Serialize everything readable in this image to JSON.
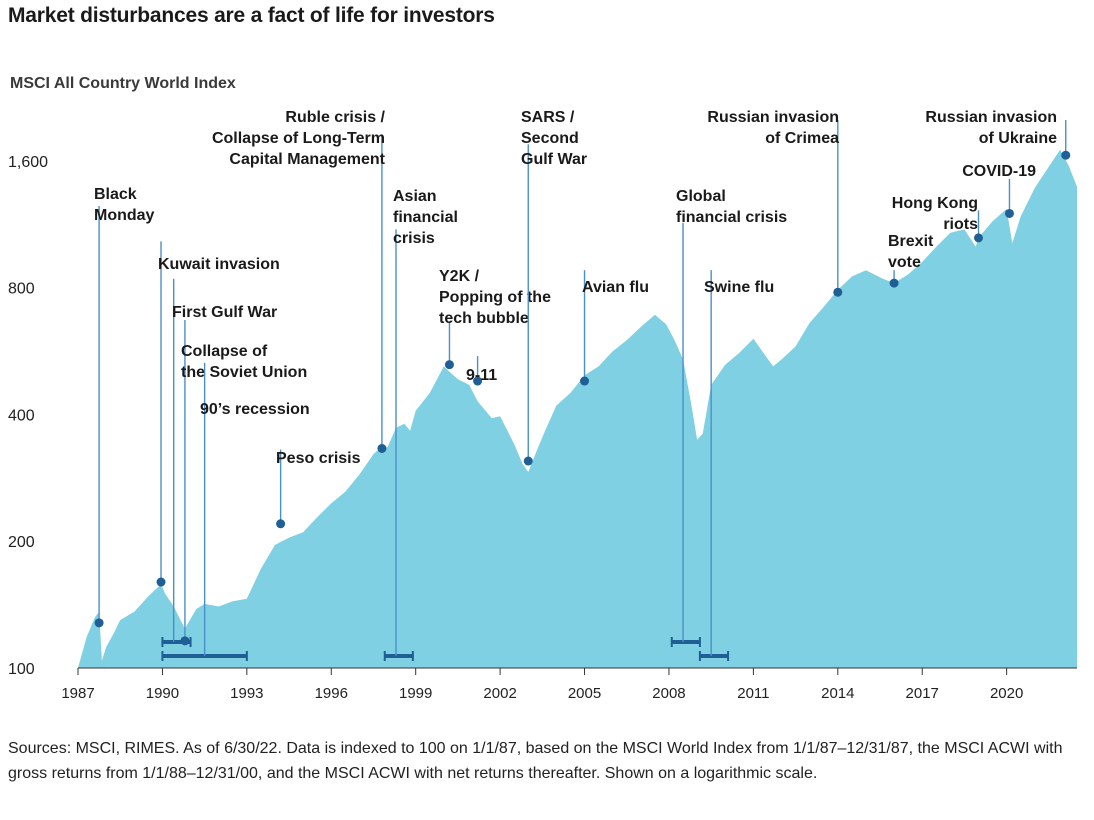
{
  "title": "Market disturbances are a fact of life for investors",
  "subtitle": "MSCI All Country World Index",
  "source": "Sources: MSCI, RIMES. As of 6/30/22. Data is indexed to 100 on 1/1/87, based on the MSCI World Index from 1/1/87–12/31/87, the MSCI ACWI with gross returns from 1/1/88–12/31/00, and the MSCI ACWI with net returns thereafter. Shown on a logarithmic scale.",
  "colors": {
    "area": "#7fd0e2",
    "marker": "#1f5f96",
    "leader": "#4a90c8",
    "text": "#1a1a1a"
  },
  "chart_data": {
    "type": "area",
    "title": "MSCI All Country World Index",
    "y_scale": "log",
    "ylim": [
      100,
      2000
    ],
    "xlim": [
      1987,
      2022.5
    ],
    "y_ticks": [
      {
        "value": 100,
        "label": "100"
      },
      {
        "value": 200,
        "label": "200"
      },
      {
        "value": 400,
        "label": "400"
      },
      {
        "value": 800,
        "label": "800"
      },
      {
        "value": 1600,
        "label": "1,600"
      }
    ],
    "x_ticks": [
      {
        "value": 1987,
        "label": "1987"
      },
      {
        "value": 1990,
        "label": "1990"
      },
      {
        "value": 1993,
        "label": "1993"
      },
      {
        "value": 1996,
        "label": "1996"
      },
      {
        "value": 1999,
        "label": "1999"
      },
      {
        "value": 2002,
        "label": "2002"
      },
      {
        "value": 2005,
        "label": "2005"
      },
      {
        "value": 2008,
        "label": "2008"
      },
      {
        "value": 2011,
        "label": "2011"
      },
      {
        "value": 2014,
        "label": "2014"
      },
      {
        "value": 2017,
        "label": "2017"
      },
      {
        "value": 2020,
        "label": "2020"
      }
    ],
    "series": [
      {
        "name": "MSCI ACWI index level",
        "x": [
          1987.0,
          1987.3,
          1987.6,
          1987.75,
          1987.85,
          1988.0,
          1988.3,
          1988.5,
          1989.0,
          1989.5,
          1989.95,
          1990.1,
          1990.4,
          1990.8,
          1991.2,
          1991.5,
          1992.0,
          1992.5,
          1993.0,
          1993.5,
          1994.0,
          1994.5,
          1995.0,
          1995.5,
          1996.0,
          1996.5,
          1997.0,
          1997.5,
          1997.8,
          1998.0,
          1998.3,
          1998.6,
          1998.8,
          1999.0,
          1999.5,
          2000.0,
          2000.2,
          2000.5,
          2000.9,
          2001.2,
          2001.7,
          2002.0,
          2002.5,
          2002.8,
          2003.0,
          2003.3,
          2003.6,
          2004.0,
          2004.5,
          2005.0,
          2005.5,
          2006.0,
          2006.5,
          2007.0,
          2007.5,
          2007.9,
          2008.2,
          2008.5,
          2008.8,
          2009.0,
          2009.2,
          2009.5,
          2010.0,
          2010.5,
          2011.0,
          2011.4,
          2011.7,
          2012.0,
          2012.5,
          2013.0,
          2013.5,
          2014.0,
          2014.5,
          2015.0,
          2015.6,
          2016.0,
          2016.5,
          2017.0,
          2017.5,
          2018.0,
          2018.5,
          2018.9,
          2019.0,
          2019.5,
          2020.0,
          2020.2,
          2020.5,
          2021.0,
          2021.5,
          2021.9,
          2022.2,
          2022.5
        ],
        "values": [
          100,
          118,
          132,
          136,
          104,
          112,
          122,
          130,
          136,
          148,
          158,
          150,
          140,
          124,
          138,
          142,
          140,
          144,
          146,
          172,
          196,
          204,
          210,
          228,
          246,
          262,
          288,
          322,
          336,
          334,
          372,
          380,
          366,
          408,
          450,
          520,
          505,
          485,
          470,
          430,
          392,
          396,
          340,
          305,
          292,
          328,
          366,
          420,
          450,
          495,
          520,
          565,
          600,
          645,
          690,
          655,
          600,
          540,
          420,
          348,
          360,
          470,
          525,
          560,
          605,
          555,
          520,
          540,
          580,
          660,
          720,
          790,
          850,
          880,
          840,
          820,
          860,
          920,
          1000,
          1080,
          1100,
          1000,
          1050,
          1150,
          1230,
          1020,
          1180,
          1380,
          1550,
          1700,
          1560,
          1390
        ]
      }
    ],
    "events": [
      {
        "label": "Black Monday",
        "x": 1987.75,
        "y": 128,
        "text_pos": "above-right",
        "line_top_value": 1250
      },
      {
        "label": "Kuwait invasion",
        "x": 1989.95,
        "y": 160,
        "line_top_value": 1030
      },
      {
        "label": "First Gulf War",
        "x": 1990.4,
        "line_top_value": 840
      },
      {
        "label": "Collapse of the Soviet Union",
        "x": 1990.8,
        "y": 116,
        "line_top_value": 670
      },
      {
        "label": "90’s recession",
        "x": 1991.5,
        "line_top_value": 530
      },
      {
        "label": "Peso crisis",
        "x": 1994.2,
        "y": 220,
        "line_top_value": 330
      },
      {
        "label": "Ruble crisis / Collapse of Long-Term Capital Management",
        "x": 1997.8,
        "y": 332,
        "line_top_value": 1850
      },
      {
        "label": "Asian financial crisis",
        "x": 1998.3,
        "line_top_value": 1100
      },
      {
        "label": "Y2K / Popping of the tech bubble",
        "x": 2000.2,
        "y": 525,
        "line_top_value": 665
      },
      {
        "label": "9-11",
        "x": 2001.2,
        "y": 480,
        "line_top_value": 550
      },
      {
        "label": "SARS / Second Gulf War",
        "x": 2003.0,
        "y": 310,
        "line_top_value": 1750
      },
      {
        "label": "Avian flu",
        "x": 2005.0,
        "y": 480,
        "line_top_value": 880
      },
      {
        "label": "Global financial crisis",
        "x": 2008.5,
        "line_top_value": 1140
      },
      {
        "label": "Swine flu",
        "x": 2009.5,
        "line_top_value": 880
      },
      {
        "label": "Russian invasion of Crimea",
        "x": 2014.0,
        "y": 780,
        "line_top_value": 2000
      },
      {
        "label": "Brexit vote",
        "x": 2016.0,
        "y": 820,
        "line_top_value": 880
      },
      {
        "label": "Hong Kong riots",
        "x": 2019.0,
        "y": 1050,
        "line_top_value": 1220
      },
      {
        "label": "COVID-19",
        "x": 2020.1,
        "y": 1200,
        "line_top_value": 1450
      },
      {
        "label": "Russian invasion of Ukraine",
        "x": 2022.1,
        "y": 1650,
        "line_top_value": 2000
      }
    ],
    "periods": [
      {
        "label": "First Gulf War",
        "x_start": 1990.0,
        "x_end": 1991.0,
        "level": 1
      },
      {
        "label": "90’s recession",
        "x_start": 1990.0,
        "x_end": 1993.0,
        "level": 2
      },
      {
        "label": "Asian financial crisis",
        "x_start": 1997.9,
        "x_end": 1998.9,
        "level": 2
      },
      {
        "label": "Global financial crisis",
        "x_start": 2008.1,
        "x_end": 2009.1,
        "level": 1
      },
      {
        "label": "Swine flu",
        "x_start": 2009.1,
        "x_end": 2010.1,
        "level": 2
      }
    ]
  }
}
